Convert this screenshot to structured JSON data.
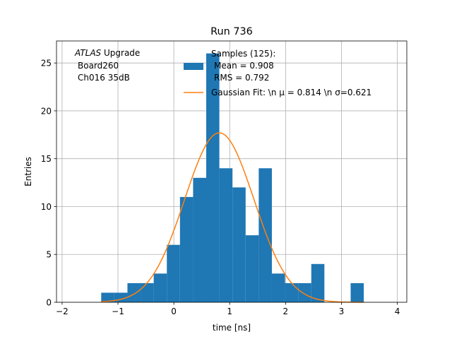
{
  "chart_data": {
    "type": "bar",
    "title": "Run 736",
    "xlabel": "time [ns]",
    "ylabel": "Entries",
    "xlim": [
      -2.1,
      4.17
    ],
    "ylim": [
      0,
      27.3
    ],
    "grid": true,
    "xticks": [
      -2,
      -1,
      0,
      1,
      2,
      3,
      4
    ],
    "xtick_labels": [
      "−2",
      "−1",
      "0",
      "1",
      "2",
      "3",
      "4"
    ],
    "yticks": [
      0,
      5,
      10,
      15,
      20,
      25
    ],
    "ytick_labels": [
      "0",
      "5",
      "10",
      "15",
      "20",
      "25"
    ],
    "histogram": {
      "name": "Samples (125):",
      "color": "#1f77b4",
      "bin_edges": [
        -1.3,
        -1.065,
        -0.83,
        -0.595,
        -0.36,
        -0.125,
        0.11,
        0.345,
        0.58,
        0.815,
        1.05,
        1.285,
        1.52,
        1.755,
        1.99,
        2.225,
        2.46,
        2.695,
        2.93,
        3.165,
        3.4
      ],
      "counts": [
        1,
        1,
        2,
        2,
        3,
        6,
        11,
        13,
        26,
        14,
        12,
        7,
        14,
        3,
        2,
        2,
        4,
        0,
        0,
        2
      ]
    },
    "fit": {
      "name": "Gaussian Fit: \\n μ = 0.814 \\n σ=0.621",
      "color": "#ff7f0e",
      "function": "gaussian",
      "amplitude": 17.7,
      "mu": 0.814,
      "sigma": 0.621,
      "x_range": [
        -1.3,
        3.4
      ]
    },
    "legend": {
      "placement": "top-center",
      "hist_entry": [
        "Samples (125):",
        "Mean = 0.908",
        "RMS = 0.792"
      ],
      "fit_entry": "Gaussian Fit: \\n μ = 0.814 \\n σ=0.621"
    },
    "annotation": {
      "line1_italic": "ATLAS",
      "line1_rest": " Upgrade",
      "line2": "Board260",
      "line3": "Ch016 35dB"
    }
  }
}
